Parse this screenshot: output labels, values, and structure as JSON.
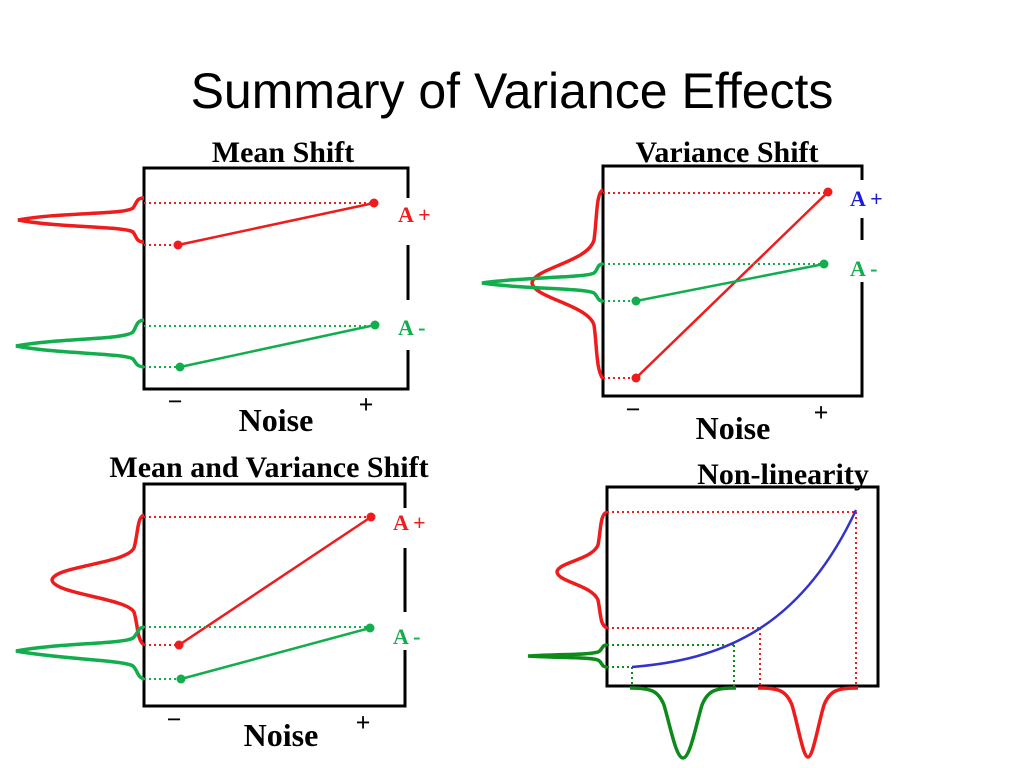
{
  "title": "Summary of Variance Effects",
  "colors": {
    "red": "#ee1c1c",
    "green": "#12ad4d",
    "dark_green": "#0d8a1a",
    "blue": "#3333cc",
    "blue_label": "#1d1dd8",
    "frame": "#000000"
  },
  "panels": [
    {
      "id": "mean-shift",
      "title": "Mean Shift",
      "x_label": "Noise",
      "x_ticks": [
        "−",
        "+"
      ],
      "lines": [
        {
          "label": "A +",
          "color": "red",
          "low_value": 0.65,
          "high_value": 0.85
        },
        {
          "label": "A -",
          "color": "green",
          "low_value": 0.1,
          "high_value": 0.3
        }
      ]
    },
    {
      "id": "variance-shift",
      "title": "Variance Shift",
      "x_label": "Noise",
      "x_ticks": [
        "−",
        "+"
      ],
      "lines": [
        {
          "label": "A +",
          "label_color": "blue_label",
          "color": "red",
          "low_value": 0.05,
          "high_value": 0.95
        },
        {
          "label": "A -",
          "color": "green",
          "low_value": 0.4,
          "high_value": 0.6
        }
      ]
    },
    {
      "id": "mean-and-variance-shift",
      "title": "Mean and Variance Shift",
      "x_label": "Noise",
      "x_ticks": [
        "−",
        "+"
      ],
      "lines": [
        {
          "label": "A +",
          "color": "red",
          "low_value": 0.3,
          "high_value": 0.9
        },
        {
          "label": "A -",
          "color": "green",
          "low_value": 0.15,
          "high_value": 0.35
        }
      ]
    },
    {
      "id": "non-linearity",
      "title": "Non-linearity",
      "curve_color": "blue"
    }
  ]
}
